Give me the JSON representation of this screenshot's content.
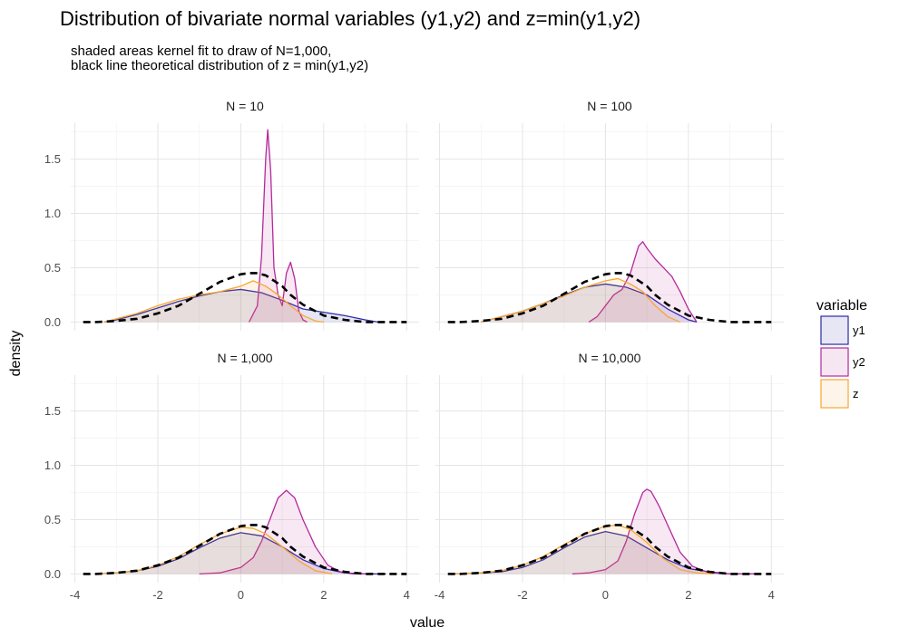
{
  "title": "Distribution of bivariate normal variables (y1,y2) and z=min(y1,y2)",
  "subtitle": [
    "shaded areas kernel fit to draw of N=1,000,",
    "black line theoretical distribution of z = min(y1,y2)"
  ],
  "chart_data": {
    "type": "area",
    "xlabel": "value",
    "ylabel": "density",
    "xlim": [
      -4.1,
      4.3
    ],
    "ylim": [
      -0.08,
      1.83
    ],
    "xticks": [
      -4,
      -2,
      0,
      2,
      4
    ],
    "yticks": [
      0.0,
      0.5,
      1.0,
      1.5
    ],
    "xtick_labels": [
      "-4",
      "-2",
      "0",
      "2",
      "4"
    ],
    "ytick_labels": [
      "0.0",
      "0.5",
      "1.0",
      "1.5"
    ],
    "grid": true,
    "legend": {
      "title": "variable",
      "placement": "right",
      "entries": [
        {
          "name": "y1",
          "line": "#2b2ba6",
          "fill": "#e6e6f4"
        },
        {
          "name": "y2",
          "line": "#b5299b",
          "fill": "#f5e6f1"
        },
        {
          "name": "z",
          "line": "#f8a630",
          "fill": "#fdf4ea"
        }
      ]
    },
    "panels": [
      {
        "label": "N = 10",
        "series": [
          {
            "name": "y1",
            "x": [
              -3.3,
              -3.0,
              -2.5,
              -2.0,
              -1.5,
              -1.0,
              -0.5,
              0.0,
              0.5,
              1.0,
              1.5,
              2.0,
              2.5,
              3.0,
              3.3
            ],
            "y": [
              0.0,
              0.02,
              0.07,
              0.13,
              0.19,
              0.24,
              0.28,
              0.3,
              0.27,
              0.2,
              0.12,
              0.09,
              0.06,
              0.02,
              0.0
            ]
          },
          {
            "name": "y2",
            "x": [
              0.2,
              0.4,
              0.5,
              0.6,
              0.65,
              0.72,
              0.8,
              0.9,
              1.0,
              1.1,
              1.2,
              1.3,
              1.4,
              1.5,
              1.6
            ],
            "y": [
              0.0,
              0.15,
              0.6,
              1.5,
              1.77,
              1.4,
              0.5,
              0.25,
              0.15,
              0.45,
              0.55,
              0.4,
              0.1,
              0.02,
              0.0
            ]
          },
          {
            "name": "z",
            "x": [
              -3.3,
              -3.0,
              -2.5,
              -2.0,
              -1.5,
              -1.0,
              -0.5,
              0.0,
              0.3,
              0.6,
              0.9,
              1.2,
              1.5,
              1.8,
              2.0
            ],
            "y": [
              0.0,
              0.03,
              0.08,
              0.15,
              0.21,
              0.25,
              0.28,
              0.33,
              0.38,
              0.33,
              0.25,
              0.15,
              0.06,
              0.01,
              0.0
            ]
          },
          {
            "name": "theoretical",
            "x": [
              -3.8,
              -3.5,
              -3.0,
              -2.5,
              -2.0,
              -1.5,
              -1.0,
              -0.5,
              0.0,
              0.2,
              0.4,
              0.6,
              0.8,
              1.0,
              1.2,
              1.5,
              2.0,
              2.5,
              3.0,
              3.5,
              4.0
            ],
            "y": [
              0.0,
              0.0,
              0.01,
              0.03,
              0.08,
              0.15,
              0.26,
              0.37,
              0.44,
              0.45,
              0.45,
              0.43,
              0.38,
              0.33,
              0.25,
              0.16,
              0.06,
              0.02,
              0.0,
              0.0,
              0.0
            ]
          }
        ]
      },
      {
        "label": "N = 100",
        "series": [
          {
            "name": "y1",
            "x": [
              -3.0,
              -2.5,
              -2.0,
              -1.5,
              -1.0,
              -0.5,
              0.0,
              0.5,
              1.0,
              1.5,
              2.0,
              2.2
            ],
            "y": [
              0.0,
              0.05,
              0.1,
              0.17,
              0.25,
              0.32,
              0.35,
              0.32,
              0.25,
              0.12,
              0.02,
              0.0
            ]
          },
          {
            "name": "y2",
            "x": [
              -0.4,
              -0.2,
              0.0,
              0.2,
              0.4,
              0.6,
              0.8,
              0.9,
              1.0,
              1.2,
              1.4,
              1.6,
              1.8,
              2.0,
              2.2
            ],
            "y": [
              0.0,
              0.05,
              0.15,
              0.25,
              0.3,
              0.45,
              0.7,
              0.74,
              0.68,
              0.58,
              0.5,
              0.42,
              0.28,
              0.12,
              0.0
            ]
          },
          {
            "name": "z",
            "x": [
              -3.0,
              -2.5,
              -2.0,
              -1.5,
              -1.0,
              -0.5,
              0.0,
              0.3,
              0.6,
              0.9,
              1.2,
              1.5,
              1.8
            ],
            "y": [
              0.0,
              0.05,
              0.1,
              0.17,
              0.24,
              0.32,
              0.38,
              0.4,
              0.35,
              0.28,
              0.15,
              0.05,
              0.0
            ]
          },
          {
            "name": "theoretical",
            "x": [
              -3.8,
              -3.5,
              -3.0,
              -2.5,
              -2.0,
              -1.5,
              -1.0,
              -0.5,
              0.0,
              0.2,
              0.4,
              0.6,
              0.8,
              1.0,
              1.2,
              1.5,
              2.0,
              2.5,
              3.0,
              3.5,
              4.0
            ],
            "y": [
              0.0,
              0.0,
              0.01,
              0.03,
              0.08,
              0.15,
              0.26,
              0.37,
              0.44,
              0.45,
              0.45,
              0.43,
              0.38,
              0.33,
              0.25,
              0.16,
              0.06,
              0.02,
              0.0,
              0.0,
              0.0
            ]
          }
        ]
      },
      {
        "label": "N = 1,000",
        "series": [
          {
            "name": "y1",
            "x": [
              -3.5,
              -3.0,
              -2.5,
              -2.0,
              -1.5,
              -1.0,
              -0.5,
              0.0,
              0.5,
              1.0,
              1.5,
              2.0,
              2.5,
              3.0,
              3.5
            ],
            "y": [
              0.0,
              0.01,
              0.03,
              0.07,
              0.14,
              0.24,
              0.33,
              0.38,
              0.35,
              0.25,
              0.13,
              0.05,
              0.01,
              0.0,
              0.0
            ]
          },
          {
            "name": "y2",
            "x": [
              -1.0,
              -0.5,
              0.0,
              0.3,
              0.5,
              0.7,
              0.9,
              1.1,
              1.3,
              1.5,
              1.8,
              2.1,
              2.4,
              2.7,
              3.0
            ],
            "y": [
              0.0,
              0.01,
              0.06,
              0.15,
              0.3,
              0.5,
              0.7,
              0.77,
              0.7,
              0.5,
              0.25,
              0.08,
              0.02,
              0.0,
              0.0
            ]
          },
          {
            "name": "z",
            "x": [
              -3.5,
              -3.0,
              -2.5,
              -2.0,
              -1.5,
              -1.0,
              -0.5,
              0.0,
              0.3,
              0.6,
              1.0,
              1.4,
              1.8,
              2.2
            ],
            "y": [
              0.0,
              0.01,
              0.03,
              0.08,
              0.16,
              0.27,
              0.37,
              0.43,
              0.42,
              0.37,
              0.25,
              0.12,
              0.03,
              0.0
            ]
          },
          {
            "name": "theoretical",
            "x": [
              -3.8,
              -3.5,
              -3.0,
              -2.5,
              -2.0,
              -1.5,
              -1.0,
              -0.5,
              0.0,
              0.2,
              0.4,
              0.6,
              0.8,
              1.0,
              1.2,
              1.5,
              2.0,
              2.5,
              3.0,
              3.5,
              4.0
            ],
            "y": [
              0.0,
              0.0,
              0.01,
              0.03,
              0.08,
              0.15,
              0.26,
              0.37,
              0.44,
              0.45,
              0.45,
              0.43,
              0.38,
              0.33,
              0.25,
              0.16,
              0.06,
              0.02,
              0.0,
              0.0,
              0.0
            ]
          }
        ]
      },
      {
        "label": "N = 10,000",
        "series": [
          {
            "name": "y1",
            "x": [
              -3.7,
              -3.0,
              -2.5,
              -2.0,
              -1.5,
              -1.0,
              -0.5,
              0.0,
              0.5,
              1.0,
              1.5,
              2.0,
              2.5,
              3.0,
              3.7
            ],
            "y": [
              0.0,
              0.01,
              0.02,
              0.06,
              0.13,
              0.24,
              0.34,
              0.39,
              0.35,
              0.24,
              0.13,
              0.05,
              0.02,
              0.0,
              0.0
            ]
          },
          {
            "name": "y2",
            "x": [
              -0.8,
              -0.4,
              0.0,
              0.3,
              0.5,
              0.7,
              0.9,
              1.0,
              1.1,
              1.3,
              1.5,
              1.8,
              2.1,
              2.5,
              3.0,
              3.7
            ],
            "y": [
              0.0,
              0.01,
              0.04,
              0.12,
              0.3,
              0.55,
              0.75,
              0.78,
              0.76,
              0.62,
              0.45,
              0.2,
              0.07,
              0.01,
              0.0,
              0.0
            ]
          },
          {
            "name": "z",
            "x": [
              -3.7,
              -3.0,
              -2.5,
              -2.0,
              -1.5,
              -1.0,
              -0.5,
              0.0,
              0.3,
              0.6,
              1.0,
              1.4,
              1.8,
              2.2,
              2.6
            ],
            "y": [
              0.0,
              0.01,
              0.03,
              0.08,
              0.16,
              0.27,
              0.37,
              0.44,
              0.45,
              0.41,
              0.29,
              0.14,
              0.04,
              0.01,
              0.0
            ]
          },
          {
            "name": "theoretical",
            "x": [
              -3.8,
              -3.5,
              -3.0,
              -2.5,
              -2.0,
              -1.5,
              -1.0,
              -0.5,
              0.0,
              0.2,
              0.4,
              0.6,
              0.8,
              1.0,
              1.2,
              1.5,
              2.0,
              2.5,
              3.0,
              3.5,
              4.0
            ],
            "y": [
              0.0,
              0.0,
              0.01,
              0.03,
              0.08,
              0.15,
              0.26,
              0.37,
              0.44,
              0.45,
              0.45,
              0.43,
              0.38,
              0.33,
              0.25,
              0.16,
              0.06,
              0.02,
              0.0,
              0.0,
              0.0
            ]
          }
        ]
      }
    ]
  }
}
